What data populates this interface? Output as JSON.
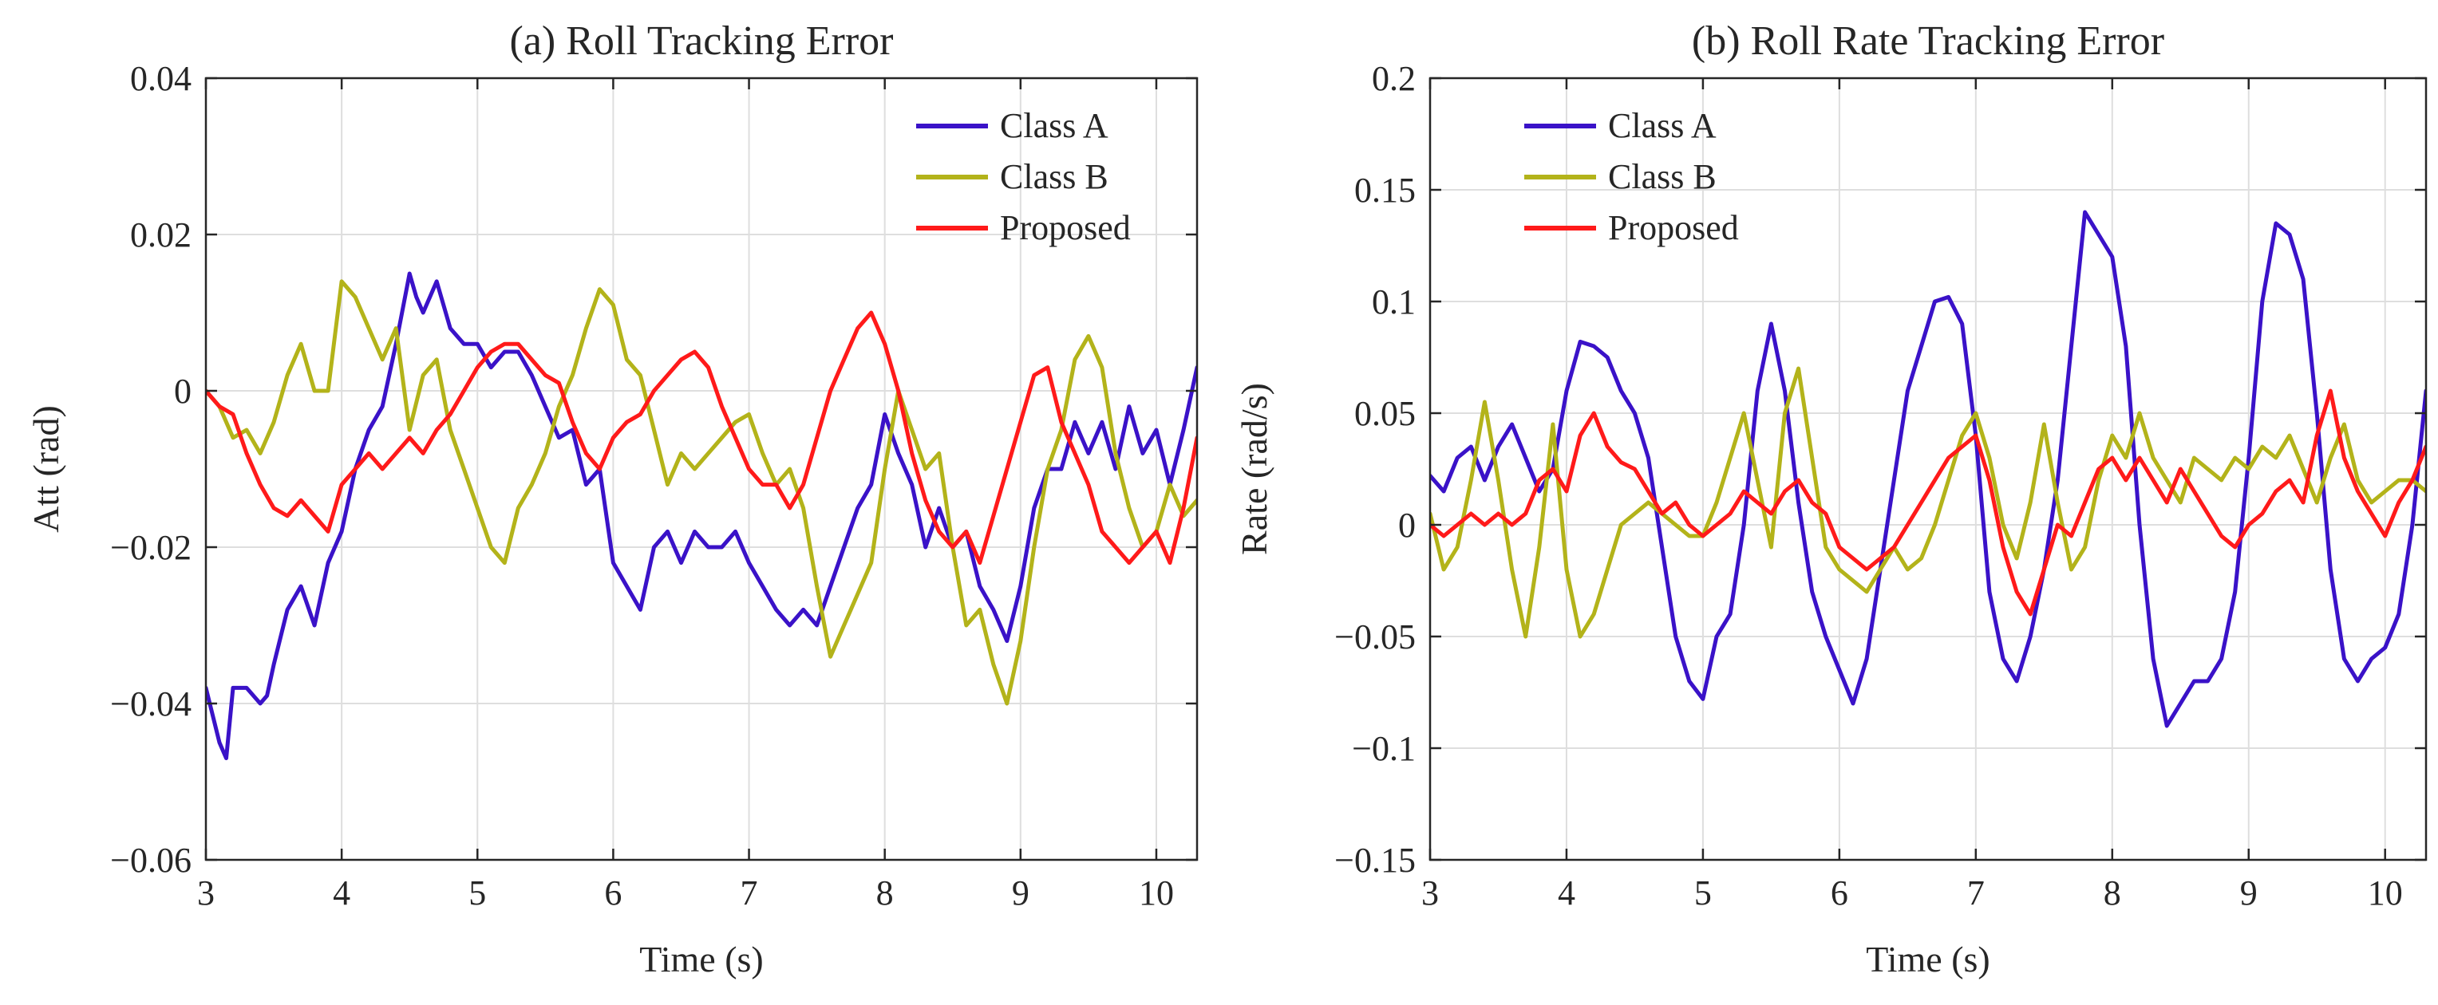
{
  "figure": {
    "colors": {
      "class_a": "#3a12c8",
      "class_b": "#b3b31a",
      "proposed": "#ff1a1a",
      "grid": "#dedede",
      "axes": "#262626"
    }
  },
  "chart_data": [
    {
      "type": "line",
      "title": "(a) Roll Tracking Error",
      "xlabel": "Time (s)",
      "ylabel": "Att (rad)",
      "xlim": [
        3,
        10.3
      ],
      "ylim": [
        -0.06,
        0.04
      ],
      "xticks": [
        3,
        4,
        5,
        6,
        7,
        8,
        9,
        10
      ],
      "xtick_labels": [
        "3",
        "4",
        "5",
        "6",
        "7",
        "8",
        "9",
        "10"
      ],
      "yticks": [
        -0.06,
        -0.04,
        -0.02,
        0,
        0.02,
        0.04
      ],
      "ytick_labels": [
        "−0.06",
        "−0.04",
        "−0.02",
        "0",
        "0.02",
        "0.04"
      ],
      "grid": true,
      "legend": "top-right",
      "series": [
        {
          "name": "Class A",
          "color_key": "class_a",
          "x": [
            3.0,
            3.1,
            3.15,
            3.2,
            3.3,
            3.4,
            3.45,
            3.5,
            3.6,
            3.7,
            3.8,
            3.9,
            4.0,
            4.1,
            4.2,
            4.3,
            4.4,
            4.5,
            4.55,
            4.6,
            4.7,
            4.8,
            4.9,
            5.0,
            5.1,
            5.2,
            5.3,
            5.4,
            5.5,
            5.6,
            5.7,
            5.8,
            5.9,
            6.0,
            6.1,
            6.2,
            6.3,
            6.4,
            6.5,
            6.6,
            6.7,
            6.8,
            6.9,
            7.0,
            7.1,
            7.2,
            7.3,
            7.4,
            7.5,
            7.6,
            7.7,
            7.8,
            7.9,
            8.0,
            8.1,
            8.2,
            8.3,
            8.4,
            8.5,
            8.6,
            8.7,
            8.8,
            8.9,
            9.0,
            9.1,
            9.2,
            9.3,
            9.4,
            9.5,
            9.6,
            9.7,
            9.8,
            9.9,
            10.0,
            10.1,
            10.2,
            10.3
          ],
          "y": [
            -0.038,
            -0.045,
            -0.047,
            -0.038,
            -0.038,
            -0.04,
            -0.039,
            -0.035,
            -0.028,
            -0.025,
            -0.03,
            -0.022,
            -0.018,
            -0.01,
            -0.005,
            -0.002,
            0.006,
            0.015,
            0.012,
            0.01,
            0.014,
            0.008,
            0.006,
            0.006,
            0.003,
            0.005,
            0.005,
            0.002,
            -0.002,
            -0.006,
            -0.005,
            -0.012,
            -0.01,
            -0.022,
            -0.025,
            -0.028,
            -0.02,
            -0.018,
            -0.022,
            -0.018,
            -0.02,
            -0.02,
            -0.018,
            -0.022,
            -0.025,
            -0.028,
            -0.03,
            -0.028,
            -0.03,
            -0.025,
            -0.02,
            -0.015,
            -0.012,
            -0.003,
            -0.008,
            -0.012,
            -0.02,
            -0.015,
            -0.02,
            -0.018,
            -0.025,
            -0.028,
            -0.032,
            -0.025,
            -0.015,
            -0.01,
            -0.01,
            -0.004,
            -0.008,
            -0.004,
            -0.01,
            -0.002,
            -0.008,
            -0.005,
            -0.012,
            -0.005,
            0.003
          ]
        },
        {
          "name": "Class B",
          "color_key": "class_b",
          "x": [
            3.0,
            3.1,
            3.2,
            3.3,
            3.4,
            3.5,
            3.6,
            3.7,
            3.8,
            3.9,
            4.0,
            4.1,
            4.2,
            4.3,
            4.4,
            4.5,
            4.6,
            4.7,
            4.8,
            4.9,
            5.0,
            5.1,
            5.2,
            5.3,
            5.4,
            5.5,
            5.6,
            5.7,
            5.8,
            5.9,
            6.0,
            6.1,
            6.2,
            6.3,
            6.4,
            6.5,
            6.6,
            6.7,
            6.8,
            6.9,
            7.0,
            7.1,
            7.2,
            7.3,
            7.4,
            7.5,
            7.6,
            7.7,
            7.8,
            7.9,
            8.0,
            8.1,
            8.2,
            8.3,
            8.4,
            8.5,
            8.6,
            8.7,
            8.8,
            8.9,
            9.0,
            9.1,
            9.2,
            9.3,
            9.4,
            9.5,
            9.6,
            9.7,
            9.8,
            9.9,
            10.0,
            10.1,
            10.2,
            10.3
          ],
          "y": [
            0.0,
            -0.002,
            -0.006,
            -0.005,
            -0.008,
            -0.004,
            0.002,
            0.006,
            0.0,
            0.0,
            0.014,
            0.012,
            0.008,
            0.004,
            0.008,
            -0.005,
            0.002,
            0.004,
            -0.005,
            -0.01,
            -0.015,
            -0.02,
            -0.022,
            -0.015,
            -0.012,
            -0.008,
            -0.002,
            0.002,
            0.008,
            0.013,
            0.011,
            0.004,
            0.002,
            -0.005,
            -0.012,
            -0.008,
            -0.01,
            -0.008,
            -0.006,
            -0.004,
            -0.003,
            -0.008,
            -0.012,
            -0.01,
            -0.015,
            -0.025,
            -0.034,
            -0.03,
            -0.026,
            -0.022,
            -0.01,
            0.0,
            -0.005,
            -0.01,
            -0.008,
            -0.02,
            -0.03,
            -0.028,
            -0.035,
            -0.04,
            -0.032,
            -0.02,
            -0.01,
            -0.005,
            0.004,
            0.007,
            0.003,
            -0.008,
            -0.015,
            -0.02,
            -0.018,
            -0.012,
            -0.016,
            -0.014
          ]
        },
        {
          "name": "Proposed",
          "color_key": "proposed",
          "x": [
            3.0,
            3.1,
            3.2,
            3.3,
            3.4,
            3.5,
            3.6,
            3.7,
            3.8,
            3.9,
            4.0,
            4.1,
            4.2,
            4.3,
            4.4,
            4.5,
            4.6,
            4.7,
            4.8,
            4.9,
            5.0,
            5.1,
            5.2,
            5.3,
            5.4,
            5.5,
            5.6,
            5.7,
            5.8,
            5.9,
            6.0,
            6.1,
            6.2,
            6.3,
            6.4,
            6.5,
            6.6,
            6.7,
            6.8,
            6.9,
            7.0,
            7.1,
            7.2,
            7.3,
            7.4,
            7.5,
            7.6,
            7.7,
            7.8,
            7.9,
            8.0,
            8.1,
            8.2,
            8.3,
            8.4,
            8.5,
            8.6,
            8.7,
            8.8,
            8.9,
            9.0,
            9.1,
            9.2,
            9.3,
            9.4,
            9.5,
            9.6,
            9.7,
            9.8,
            9.9,
            10.0,
            10.1,
            10.2,
            10.3
          ],
          "y": [
            0.0,
            -0.002,
            -0.003,
            -0.008,
            -0.012,
            -0.015,
            -0.016,
            -0.014,
            -0.016,
            -0.018,
            -0.012,
            -0.01,
            -0.008,
            -0.01,
            -0.008,
            -0.006,
            -0.008,
            -0.005,
            -0.003,
            0.0,
            0.003,
            0.005,
            0.006,
            0.006,
            0.004,
            0.002,
            0.001,
            -0.004,
            -0.008,
            -0.01,
            -0.006,
            -0.004,
            -0.003,
            0.0,
            0.002,
            0.004,
            0.005,
            0.003,
            -0.002,
            -0.006,
            -0.01,
            -0.012,
            -0.012,
            -0.015,
            -0.012,
            -0.006,
            0.0,
            0.004,
            0.008,
            0.01,
            0.006,
            0.0,
            -0.008,
            -0.014,
            -0.018,
            -0.02,
            -0.018,
            -0.022,
            -0.016,
            -0.01,
            -0.004,
            0.002,
            0.003,
            -0.004,
            -0.008,
            -0.012,
            -0.018,
            -0.02,
            -0.022,
            -0.02,
            -0.018,
            -0.022,
            -0.015,
            -0.006
          ]
        }
      ]
    },
    {
      "type": "line",
      "title": "(b) Roll Rate Tracking Error",
      "xlabel": "Time (s)",
      "ylabel": "Rate (rad/s)",
      "xlim": [
        3,
        10.3
      ],
      "ylim": [
        -0.15,
        0.2
      ],
      "xticks": [
        3,
        4,
        5,
        6,
        7,
        8,
        9,
        10
      ],
      "xtick_labels": [
        "3",
        "4",
        "5",
        "6",
        "7",
        "8",
        "9",
        "10"
      ],
      "yticks": [
        -0.15,
        -0.1,
        -0.05,
        0,
        0.05,
        0.1,
        0.15,
        0.2
      ],
      "ytick_labels": [
        "−0.15",
        "−0.1",
        "−0.05",
        "0",
        "0.05",
        "0.1",
        "0.15",
        "0.2"
      ],
      "grid": true,
      "legend": "top-left",
      "series": [
        {
          "name": "Class A",
          "color_key": "class_a",
          "x": [
            3.0,
            3.1,
            3.2,
            3.3,
            3.4,
            3.5,
            3.6,
            3.7,
            3.8,
            3.9,
            4.0,
            4.1,
            4.2,
            4.3,
            4.4,
            4.5,
            4.6,
            4.7,
            4.8,
            4.9,
            5.0,
            5.1,
            5.2,
            5.3,
            5.4,
            5.5,
            5.6,
            5.7,
            5.8,
            5.9,
            6.0,
            6.1,
            6.2,
            6.3,
            6.4,
            6.5,
            6.6,
            6.7,
            6.8,
            6.9,
            7.0,
            7.1,
            7.2,
            7.3,
            7.4,
            7.5,
            7.6,
            7.7,
            7.8,
            7.9,
            8.0,
            8.1,
            8.2,
            8.3,
            8.4,
            8.5,
            8.6,
            8.7,
            8.8,
            8.9,
            9.0,
            9.1,
            9.2,
            9.3,
            9.4,
            9.5,
            9.6,
            9.7,
            9.8,
            9.9,
            10.0,
            10.1,
            10.2,
            10.3
          ],
          "y": [
            0.022,
            0.015,
            0.03,
            0.035,
            0.02,
            0.035,
            0.045,
            0.03,
            0.015,
            0.025,
            0.06,
            0.082,
            0.08,
            0.075,
            0.06,
            0.05,
            0.03,
            -0.01,
            -0.05,
            -0.07,
            -0.078,
            -0.05,
            -0.04,
            0.0,
            0.06,
            0.09,
            0.06,
            0.01,
            -0.03,
            -0.05,
            -0.065,
            -0.08,
            -0.06,
            -0.02,
            0.02,
            0.06,
            0.08,
            0.1,
            0.102,
            0.09,
            0.04,
            -0.03,
            -0.06,
            -0.07,
            -0.05,
            -0.02,
            0.02,
            0.08,
            0.14,
            0.13,
            0.12,
            0.08,
            0.0,
            -0.06,
            -0.09,
            -0.08,
            -0.07,
            -0.07,
            -0.06,
            -0.03,
            0.03,
            0.1,
            0.135,
            0.13,
            0.11,
            0.05,
            -0.02,
            -0.06,
            -0.07,
            -0.06,
            -0.055,
            -0.04,
            0.0,
            0.06
          ]
        },
        {
          "name": "Class B",
          "color_key": "class_b",
          "x": [
            3.0,
            3.1,
            3.2,
            3.3,
            3.4,
            3.5,
            3.6,
            3.7,
            3.8,
            3.9,
            4.0,
            4.1,
            4.2,
            4.3,
            4.4,
            4.5,
            4.6,
            4.7,
            4.8,
            4.9,
            5.0,
            5.1,
            5.2,
            5.3,
            5.4,
            5.5,
            5.6,
            5.7,
            5.8,
            5.9,
            6.0,
            6.1,
            6.2,
            6.3,
            6.4,
            6.5,
            6.6,
            6.7,
            6.8,
            6.9,
            7.0,
            7.1,
            7.2,
            7.3,
            7.4,
            7.5,
            7.6,
            7.7,
            7.8,
            7.9,
            8.0,
            8.1,
            8.2,
            8.3,
            8.4,
            8.5,
            8.6,
            8.7,
            8.8,
            8.9,
            9.0,
            9.1,
            9.2,
            9.3,
            9.4,
            9.5,
            9.6,
            9.7,
            9.8,
            9.9,
            10.0,
            10.1,
            10.2,
            10.3
          ],
          "y": [
            0.005,
            -0.02,
            -0.01,
            0.02,
            0.055,
            0.02,
            -0.02,
            -0.05,
            -0.01,
            0.045,
            -0.02,
            -0.05,
            -0.04,
            -0.02,
            0.0,
            0.005,
            0.01,
            0.005,
            0.0,
            -0.005,
            -0.005,
            0.01,
            0.03,
            0.05,
            0.02,
            -0.01,
            0.05,
            0.07,
            0.03,
            -0.01,
            -0.02,
            -0.025,
            -0.03,
            -0.02,
            -0.01,
            -0.02,
            -0.015,
            0.0,
            0.02,
            0.04,
            0.05,
            0.03,
            0.0,
            -0.015,
            0.01,
            0.045,
            0.01,
            -0.02,
            -0.01,
            0.02,
            0.04,
            0.03,
            0.05,
            0.03,
            0.02,
            0.01,
            0.03,
            0.025,
            0.02,
            0.03,
            0.025,
            0.035,
            0.03,
            0.04,
            0.025,
            0.01,
            0.03,
            0.045,
            0.02,
            0.01,
            0.015,
            0.02,
            0.02,
            0.015
          ]
        },
        {
          "name": "Proposed",
          "color_key": "proposed",
          "x": [
            3.0,
            3.1,
            3.2,
            3.3,
            3.4,
            3.5,
            3.6,
            3.7,
            3.8,
            3.9,
            4.0,
            4.1,
            4.2,
            4.3,
            4.4,
            4.5,
            4.6,
            4.7,
            4.8,
            4.9,
            5.0,
            5.1,
            5.2,
            5.3,
            5.4,
            5.5,
            5.6,
            5.7,
            5.8,
            5.9,
            6.0,
            6.1,
            6.2,
            6.3,
            6.4,
            6.5,
            6.6,
            6.7,
            6.8,
            6.9,
            7.0,
            7.1,
            7.2,
            7.3,
            7.4,
            7.5,
            7.6,
            7.7,
            7.8,
            7.9,
            8.0,
            8.1,
            8.2,
            8.3,
            8.4,
            8.5,
            8.6,
            8.7,
            8.8,
            8.9,
            9.0,
            9.1,
            9.2,
            9.3,
            9.4,
            9.5,
            9.6,
            9.7,
            9.8,
            9.9,
            10.0,
            10.1,
            10.2,
            10.3
          ],
          "y": [
            0.0,
            -0.005,
            0.0,
            0.005,
            0.0,
            0.005,
            0.0,
            0.005,
            0.02,
            0.025,
            0.015,
            0.04,
            0.05,
            0.035,
            0.028,
            0.025,
            0.015,
            0.005,
            0.01,
            0.0,
            -0.005,
            0.0,
            0.005,
            0.015,
            0.01,
            0.005,
            0.015,
            0.02,
            0.01,
            0.005,
            -0.01,
            -0.015,
            -0.02,
            -0.015,
            -0.01,
            0.0,
            0.01,
            0.02,
            0.03,
            0.035,
            0.04,
            0.02,
            -0.01,
            -0.03,
            -0.04,
            -0.02,
            0.0,
            -0.005,
            0.01,
            0.025,
            0.03,
            0.02,
            0.03,
            0.02,
            0.01,
            0.025,
            0.015,
            0.005,
            -0.005,
            -0.01,
            0.0,
            0.005,
            0.015,
            0.02,
            0.01,
            0.04,
            0.06,
            0.03,
            0.015,
            0.005,
            -0.005,
            0.01,
            0.02,
            0.035
          ]
        }
      ]
    }
  ]
}
